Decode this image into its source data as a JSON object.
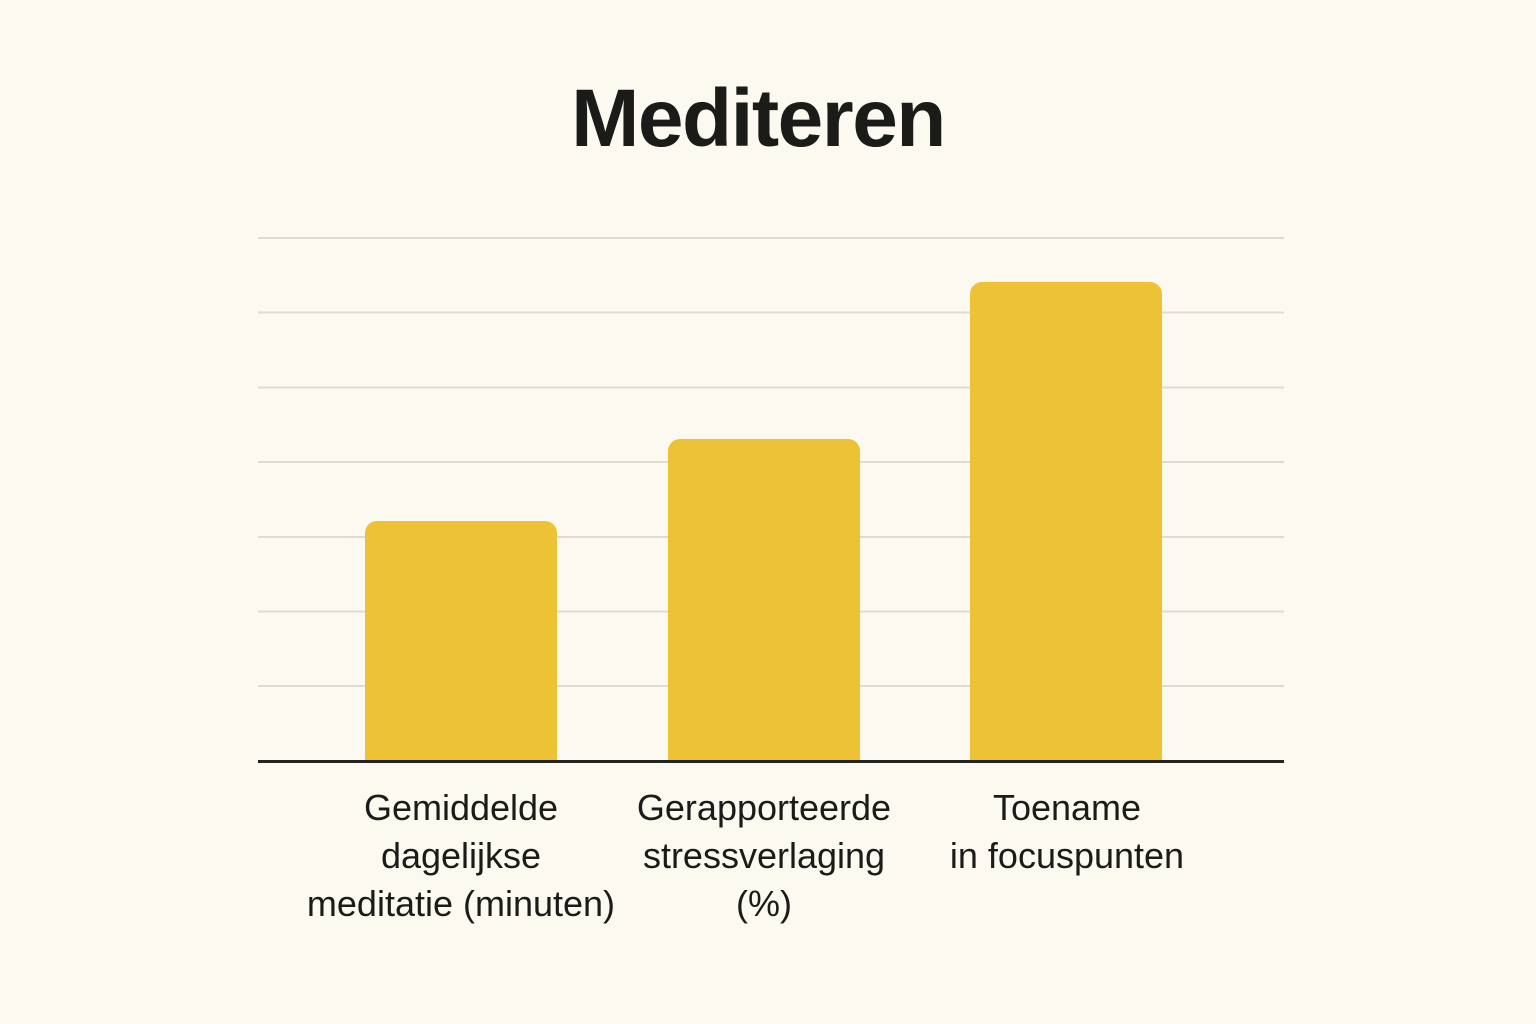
{
  "title": "Mediteren",
  "chart_data": {
    "type": "bar",
    "title": "Mediteren",
    "categories": [
      "Gemiddelde dagelijkse meditatie (minuten)",
      "Gerapporteerde stressverlaging (%)",
      "Toename in focuspunten"
    ],
    "values": [
      32,
      43,
      64
    ],
    "values_estimated": true,
    "xlabel": "",
    "ylabel": "",
    "ylim": [
      0,
      70
    ],
    "gridline_step": 10,
    "grid": "horizontal-only",
    "y_tick_labels_visible": false,
    "legend_position": "none",
    "colors": {
      "bar": "#EDC335",
      "background": "#FBF9F0",
      "gridline": "#DEDBD2",
      "axis": "#23231F",
      "text": "#1B1B19"
    }
  },
  "x_axis_labels": [
    {
      "lines": [
        "Gemiddelde",
        "dagelijkse",
        "meditatie (minuten)"
      ]
    },
    {
      "lines": [
        "Gerapporteerde",
        "stressverlaging",
        "(%)"
      ]
    },
    {
      "lines": [
        "Toename",
        "in focuspunten",
        ""
      ]
    }
  ]
}
